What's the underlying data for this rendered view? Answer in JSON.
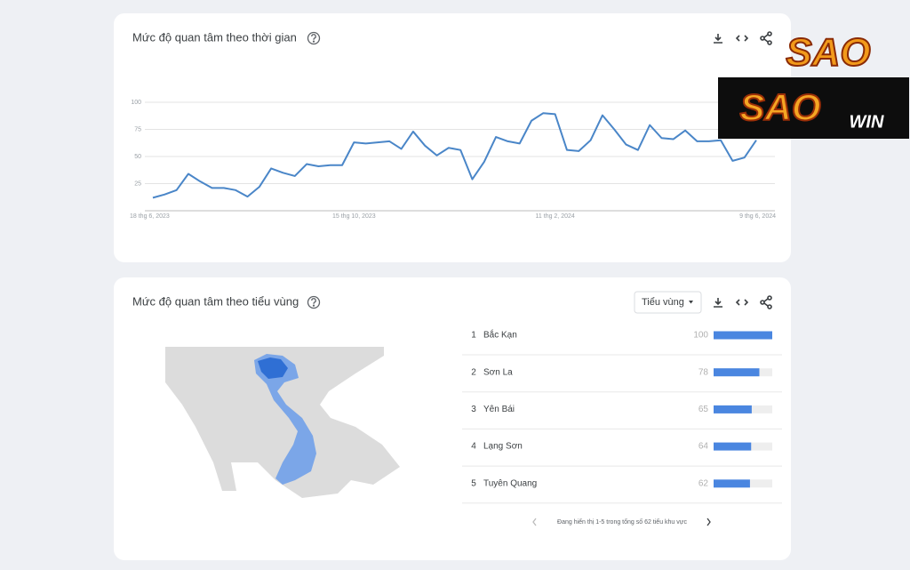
{
  "chart_data": {
    "type": "line",
    "title": "Mức độ quan tâm theo thời gian",
    "categories": [
      "18 thg 6, 2023",
      null,
      null,
      null,
      null,
      null,
      null,
      null,
      null,
      null,
      null,
      null,
      null,
      null,
      null,
      null,
      null,
      "15 thg 10, 2023",
      null,
      null,
      null,
      null,
      null,
      null,
      null,
      null,
      null,
      null,
      null,
      null,
      null,
      null,
      null,
      null,
      "11 thg 2, 2024",
      null,
      null,
      null,
      null,
      null,
      null,
      null,
      null,
      null,
      null,
      null,
      null,
      null,
      null,
      null,
      null,
      "9 thg 6, 2024"
    ],
    "values": [
      12,
      15,
      19,
      34,
      27,
      21,
      21,
      19,
      13,
      22,
      39,
      35,
      32,
      43,
      41,
      42,
      42,
      63,
      62,
      63,
      64,
      57,
      73,
      60,
      51,
      58,
      56,
      29,
      45,
      68,
      64,
      62,
      83,
      90,
      89,
      56,
      55,
      65,
      88,
      75,
      61,
      56,
      79,
      67,
      66,
      74,
      64,
      64,
      65,
      46,
      49,
      65
    ],
    "color": "#4a86c8",
    "ylim": [
      0,
      100
    ],
    "yticks": [
      25,
      50,
      75,
      100
    ],
    "grid": true
  },
  "regions": {
    "title": "Mức độ quan tâm theo tiểu vùng",
    "dropdown": "Tiểu vùng",
    "rows": [
      {
        "rank": 1,
        "name": "Bắc Kạn",
        "value": 100
      },
      {
        "rank": 2,
        "name": "Sơn La",
        "value": 78
      },
      {
        "rank": 3,
        "name": "Yên Bái",
        "value": 65
      },
      {
        "rank": 4,
        "name": "Lạng Sơn",
        "value": 64
      },
      {
        "rank": 5,
        "name": "Tuyên Quang",
        "value": 62
      }
    ],
    "bar_color": "#4a86e0",
    "max": 100,
    "pagination": "Đang hiển thị 1-5 trong tổng số 62 tiểu khu vực"
  },
  "watermark": {
    "logo_top": "SAO",
    "logo_main": "SAO",
    "logo_suffix": "WIN"
  }
}
